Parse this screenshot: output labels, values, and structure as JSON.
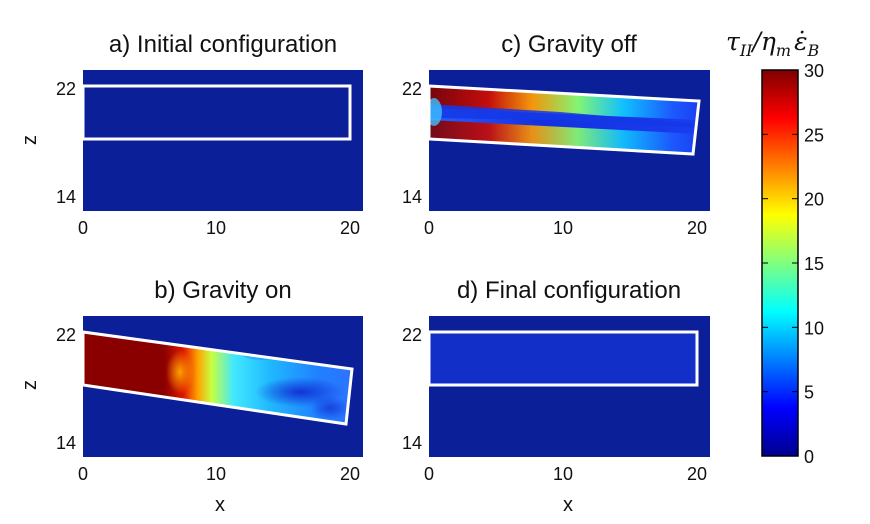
{
  "chart_data": [
    {
      "type": "heatmap",
      "title": "a) Initial configuration",
      "xlabel": "",
      "ylabel": "z",
      "xlim": [
        0,
        21
      ],
      "ylim": [
        14,
        23
      ],
      "xticks": [
        "0",
        "10",
        "20"
      ],
      "yticks": [
        "14",
        "22"
      ],
      "body_outline": [
        [
          0,
          22.3
        ],
        [
          20,
          22.3
        ],
        [
          20,
          18.3
        ],
        [
          0,
          18.3
        ]
      ],
      "field": "uniform, near 0"
    },
    {
      "type": "heatmap",
      "title": "c) Gravity off",
      "xlabel": "",
      "ylabel": "",
      "xlim": [
        0,
        21
      ],
      "ylim": [
        14,
        23
      ],
      "xticks": [
        "0",
        "10",
        "20"
      ],
      "yticks": [
        "14",
        "22"
      ],
      "body_outline": [
        [
          0,
          22.3
        ],
        [
          20.3,
          21.1
        ],
        [
          20,
          17.1
        ],
        [
          0,
          18.3
        ]
      ],
      "field": "high (~30) along top and bottom edges near x=0, decreasing to ~5 toward x=20"
    },
    {
      "type": "heatmap",
      "title": "b) Gravity on",
      "xlabel": "x",
      "ylabel": "z",
      "xlim": [
        0,
        21
      ],
      "ylim": [
        14,
        23
      ],
      "xticks": [
        "0",
        "10",
        "20"
      ],
      "yticks": [
        "14",
        "22"
      ],
      "body_outline": [
        [
          0,
          22.3
        ],
        [
          20.3,
          20.0
        ],
        [
          20,
          15.9
        ],
        [
          0,
          18.3
        ]
      ],
      "field": "~30 for x<8, ~20 near x=9, ~10-15 for x=10-20, ~3 in the lower interior near x=15-20"
    },
    {
      "type": "heatmap",
      "title": "d) Final configuration",
      "xlabel": "x",
      "ylabel": "",
      "xlim": [
        0,
        21
      ],
      "ylim": [
        14,
        23
      ],
      "xticks": [
        "0",
        "10",
        "20"
      ],
      "yticks": [
        "14",
        "22"
      ],
      "body_outline": [
        [
          0,
          22.3
        ],
        [
          20,
          22.3
        ],
        [
          20,
          18.3
        ],
        [
          0,
          18.3
        ]
      ],
      "field": "uniform, ~2"
    }
  ],
  "colorbar": {
    "label": "τII/ηm ε̇B",
    "label_main": "τ",
    "label_sub1": "II",
    "label_mid": "/η",
    "label_sub2": "m",
    "label_eps": "ε̇",
    "label_sub3": "B",
    "min": 0,
    "max": 30,
    "ticks": [
      {
        "value": 0,
        "label": "0"
      },
      {
        "value": 5,
        "label": "5"
      },
      {
        "value": 10,
        "label": "10"
      },
      {
        "value": 15,
        "label": "15"
      },
      {
        "value": 20,
        "label": "20"
      },
      {
        "value": 25,
        "label": "25"
      },
      {
        "value": 30,
        "label": "30"
      }
    ],
    "colormap": "jet"
  },
  "colors": {
    "background_field": "#0a1f98",
    "outline": "#ffffff"
  }
}
